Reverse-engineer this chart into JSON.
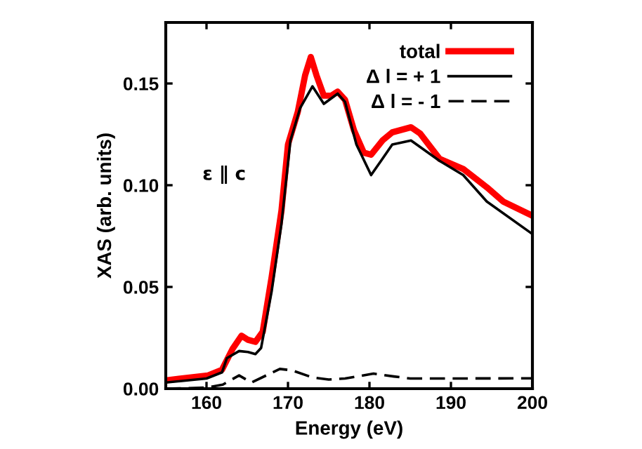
{
  "chart_data": {
    "type": "line",
    "xlabel": "Energy (eV)",
    "ylabel": "XAS (arb. units)",
    "annotations": [
      "ε ∥ c"
    ],
    "xlim": [
      155,
      200
    ],
    "xticks": [
      160,
      170,
      180,
      190,
      200
    ],
    "ylim": [
      0,
      0.18
    ],
    "yticks": [
      {
        "value": 0,
        "label": "0.00"
      },
      {
        "value": 0.05,
        "label": "0.05"
      },
      {
        "value": 0.1,
        "label": "0.10"
      },
      {
        "value": 0.15,
        "label": "0.15"
      }
    ],
    "grid": false,
    "legend": "top right",
    "series": [
      {
        "name": "total",
        "color": "#ff0000",
        "line_style": "solid",
        "x": [
          155,
          160.2,
          161.9,
          163.2,
          164.3,
          165.1,
          166.0,
          166.9,
          168.0,
          169.2,
          170.0,
          171.2,
          172.1,
          172.8,
          173.5,
          174.4,
          175.3,
          176.1,
          177.0,
          178.1,
          179.3,
          180.2,
          181.6,
          182.8,
          185.1,
          186.2,
          188.6,
          191.5,
          194.4,
          196.4,
          200
        ],
        "values": [
          0.0041,
          0.0065,
          0.0093,
          0.0196,
          0.026,
          0.024,
          0.023,
          0.028,
          0.055,
          0.0875,
          0.12,
          0.136,
          0.154,
          0.163,
          0.154,
          0.144,
          0.144,
          0.146,
          0.142,
          0.127,
          0.116,
          0.115,
          0.122,
          0.126,
          0.1285,
          0.1255,
          0.113,
          0.108,
          0.099,
          0.092,
          0.085
        ]
      },
      {
        "name": "Δ l = + 1",
        "color": "#000000",
        "line_style": "solid",
        "x": [
          155,
          160,
          161.9,
          162.5,
          164.0,
          165.1,
          166.0,
          166.7,
          168.0,
          169.2,
          170.3,
          171.5,
          173.0,
          174.4,
          176.1,
          177.0,
          178.4,
          180.2,
          181.6,
          182.8,
          185.1,
          188.6,
          191.5,
          194.4,
          200
        ],
        "values": [
          0.003,
          0.005,
          0.008,
          0.015,
          0.0185,
          0.018,
          0.017,
          0.02,
          0.048,
          0.081,
          0.122,
          0.138,
          0.1486,
          0.14,
          0.145,
          0.141,
          0.12,
          0.105,
          0.113,
          0.12,
          0.122,
          0.112,
          0.105,
          0.092,
          0.076
        ]
      },
      {
        "name": "Δ l = - 1",
        "color": "#000000",
        "line_style": "dashed",
        "x": [
          155,
          160,
          162,
          164.0,
          165.5,
          169,
          170.5,
          173,
          175,
          177,
          180.5,
          183,
          185,
          190,
          200
        ],
        "values": [
          0.0,
          0.0005,
          0.002,
          0.0065,
          0.003,
          0.0097,
          0.009,
          0.0055,
          0.0045,
          0.005,
          0.0074,
          0.006,
          0.005,
          0.005,
          0.0051
        ]
      }
    ]
  }
}
